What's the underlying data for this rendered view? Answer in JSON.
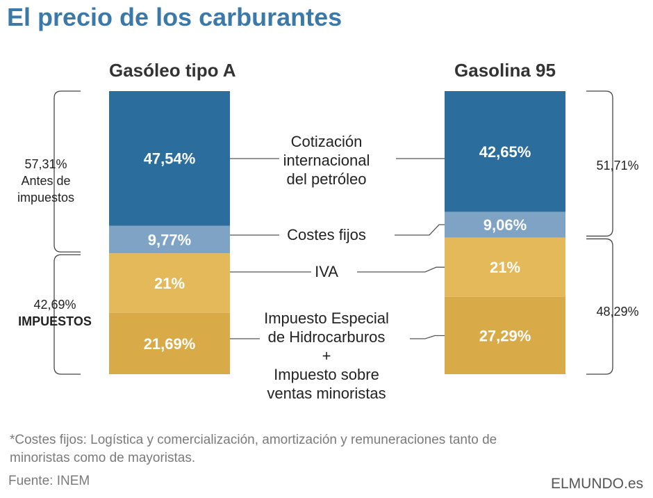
{
  "title": "El precio de los carburantes",
  "colors": {
    "cotizacion": "#2b6e9e",
    "costes": "#7fa3c4",
    "iva": "#e4b95a",
    "impuesto": "#d8aa48",
    "title": "#3b7aa8"
  },
  "chart_data": {
    "type": "bar",
    "subtype": "stacked-100",
    "title": "El precio de los carburantes",
    "categories": [
      "Gasóleo tipo A",
      "Gasolina 95"
    ],
    "series": [
      {
        "name": "Cotización internacional del petróleo",
        "values": [
          47.54,
          42.65
        ],
        "labels": [
          "47,54%",
          "42,65%"
        ]
      },
      {
        "name": "Costes fijos",
        "values": [
          9.77,
          9.06
        ],
        "labels": [
          "9,77%",
          "9,06%"
        ]
      },
      {
        "name": "IVA",
        "values": [
          21,
          21
        ],
        "labels": [
          "21%",
          "21%"
        ]
      },
      {
        "name": "Impuesto Especial de Hidrocarburos + Impuesto sobre ventas minoristas",
        "values": [
          21.69,
          27.29
        ],
        "labels": [
          "21,69%",
          "27,29%"
        ]
      }
    ],
    "groups": {
      "left": {
        "antes": {
          "value": 57.31,
          "label": "57,31%",
          "text1": "Antes de",
          "text2": "impuestos"
        },
        "impuestos": {
          "value": 42.69,
          "label": "42,69%",
          "text": "IMPUESTOS"
        }
      },
      "right": {
        "antes": {
          "value": 51.71,
          "label": "51,71%"
        },
        "impuestos": {
          "value": 48.29,
          "label": "48,29%"
        }
      }
    }
  },
  "mid_labels": {
    "cotizacion": [
      "Cotización",
      "internacional",
      "del petróleo"
    ],
    "costes": "Costes fijos",
    "iva": "IVA",
    "impuesto": [
      "Impuesto Especial",
      "de Hidrocarburos",
      "+",
      "Impuesto sobre",
      "ventas minoristas"
    ]
  },
  "footnote_line1": "*Costes fijos: Logística y comercialización, amortización y remuneraciones tanto de",
  "footnote_line2": "minoristas como de mayoristas.",
  "source": "Fuente: INEM",
  "brand": "ELMUNDO.es"
}
